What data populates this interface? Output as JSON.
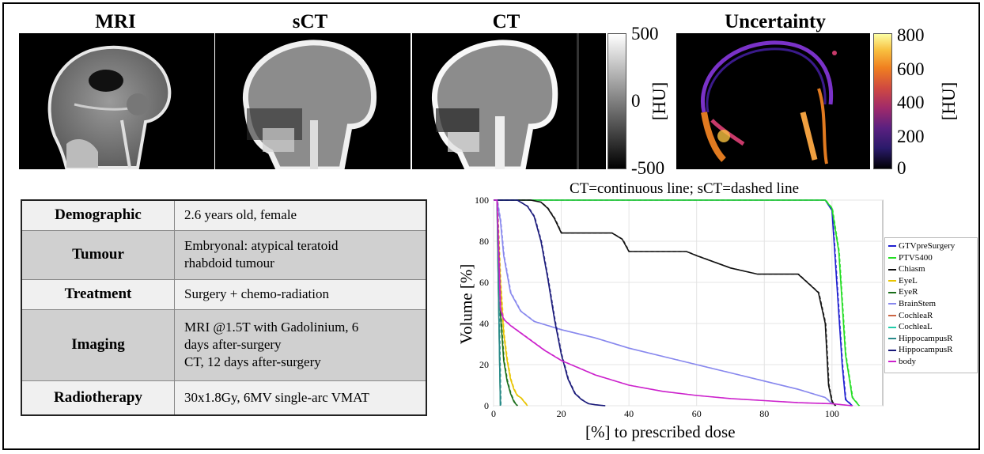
{
  "panels": {
    "mri": "MRI",
    "sct": "sCT",
    "ct": "CT",
    "uncertainty": "Uncertainty"
  },
  "colorbar_gray": {
    "max": "500",
    "mid": "0",
    "min": "-500",
    "unit": "[HU]"
  },
  "colorbar_unc": {
    "t800": "800",
    "t600": "600",
    "t400": "400",
    "t200": "200",
    "t0": "0",
    "unit": "[HU]"
  },
  "table": [
    {
      "key": "Demographic",
      "value": [
        "2.6 years old, female"
      ]
    },
    {
      "key": "Tumour",
      "value": [
        "Embryonal: atypical teratoid",
        "rhabdoid tumour"
      ]
    },
    {
      "key": "Treatment",
      "value": [
        "Surgery + chemo-radiation"
      ]
    },
    {
      "key": "Imaging",
      "value": [
        "MRI @1.5T with Gadolinium, 6",
        "days after-surgery",
        "CT, 12 days after-surgery"
      ]
    },
    {
      "key": "Radiotherapy",
      "value": [
        "30x1.8Gy, 6MV single-arc VMAT"
      ]
    }
  ],
  "chart_data": {
    "type": "line",
    "title": "CT=continuous line; sCT=dashed line",
    "xlabel": "[%] to prescribed dose",
    "ylabel": "Volume [%]",
    "xlim": [
      0,
      115
    ],
    "ylim": [
      0,
      100
    ],
    "xticks": [
      "0",
      "20",
      "40",
      "60",
      "80",
      "100"
    ],
    "yticks": [
      "0",
      "20",
      "40",
      "60",
      "80",
      "100"
    ],
    "series": [
      {
        "name": "GTVpreSurgery",
        "color": "#1f1fd0",
        "x": [
          0,
          98,
          100,
          101,
          103,
          104,
          106
        ],
        "y": [
          100,
          100,
          95,
          70,
          20,
          3,
          0
        ]
      },
      {
        "name": "PTV5400",
        "color": "#22dd22",
        "x": [
          0,
          98,
          100,
          102,
          104,
          106,
          108
        ],
        "y": [
          100,
          100,
          96,
          75,
          25,
          4,
          0
        ]
      },
      {
        "name": "Chiasm",
        "color": "#111111",
        "x": [
          0,
          11,
          14,
          16,
          18,
          20,
          35,
          38,
          40,
          57,
          60,
          70,
          78,
          90,
          94,
          96,
          98,
          99,
          100,
          101
        ],
        "y": [
          100,
          100,
          99,
          96,
          91,
          84,
          84,
          81,
          75,
          75,
          73,
          67,
          64,
          64,
          58,
          55,
          40,
          10,
          2,
          0
        ]
      },
      {
        "name": "EyeL",
        "color": "#e8c400",
        "x": [
          0,
          1,
          2,
          3,
          4,
          5,
          6,
          7,
          8,
          9,
          10
        ],
        "y": [
          100,
          100,
          60,
          35,
          22,
          13,
          8,
          5,
          4,
          2,
          0
        ]
      },
      {
        "name": "EyeR",
        "color": "#1a6e1a",
        "x": [
          0,
          1,
          2,
          3,
          4,
          5,
          6,
          7
        ],
        "y": [
          100,
          100,
          45,
          22,
          12,
          6,
          2,
          0
        ]
      },
      {
        "name": "BrainStem",
        "color": "#8888ee",
        "x": [
          0,
          1,
          2,
          3,
          5,
          8,
          12,
          16,
          20,
          30,
          40,
          50,
          60,
          70,
          80,
          90,
          98,
          100
        ],
        "y": [
          100,
          100,
          90,
          73,
          55,
          46,
          41,
          39,
          37,
          33,
          28,
          24,
          20,
          16,
          12,
          8,
          4,
          1
        ]
      },
      {
        "name": "CochleaR",
        "color": "#cc6644",
        "x": [
          0,
          1,
          1.5,
          2
        ],
        "y": [
          100,
          100,
          50,
          0
        ]
      },
      {
        "name": "CochleaL",
        "color": "#22ccaa",
        "x": [
          0,
          1,
          1.5,
          2
        ],
        "y": [
          100,
          100,
          50,
          0
        ]
      },
      {
        "name": "HippocampusR",
        "color": "#2a8a8a",
        "x": [
          0,
          1,
          1.5,
          2
        ],
        "y": [
          100,
          100,
          50,
          0
        ]
      },
      {
        "name": "HippocampusR",
        "color": "#1a1a7a",
        "x": [
          0,
          7,
          10,
          12,
          14,
          16,
          18,
          20,
          22,
          24,
          26,
          28,
          30,
          33
        ],
        "y": [
          100,
          100,
          97,
          92,
          80,
          62,
          42,
          25,
          13,
          6,
          3,
          1,
          0.5,
          0
        ]
      },
      {
        "name": "body",
        "color": "#cc22cc",
        "x": [
          0,
          1,
          2,
          3,
          5,
          10,
          15,
          20,
          30,
          40,
          50,
          60,
          70,
          80,
          90,
          100,
          106
        ],
        "y": [
          100,
          100,
          47,
          42,
          39,
          33,
          27,
          22,
          15,
          10,
          7,
          5,
          3.5,
          2.5,
          1.5,
          1,
          0
        ]
      }
    ]
  }
}
